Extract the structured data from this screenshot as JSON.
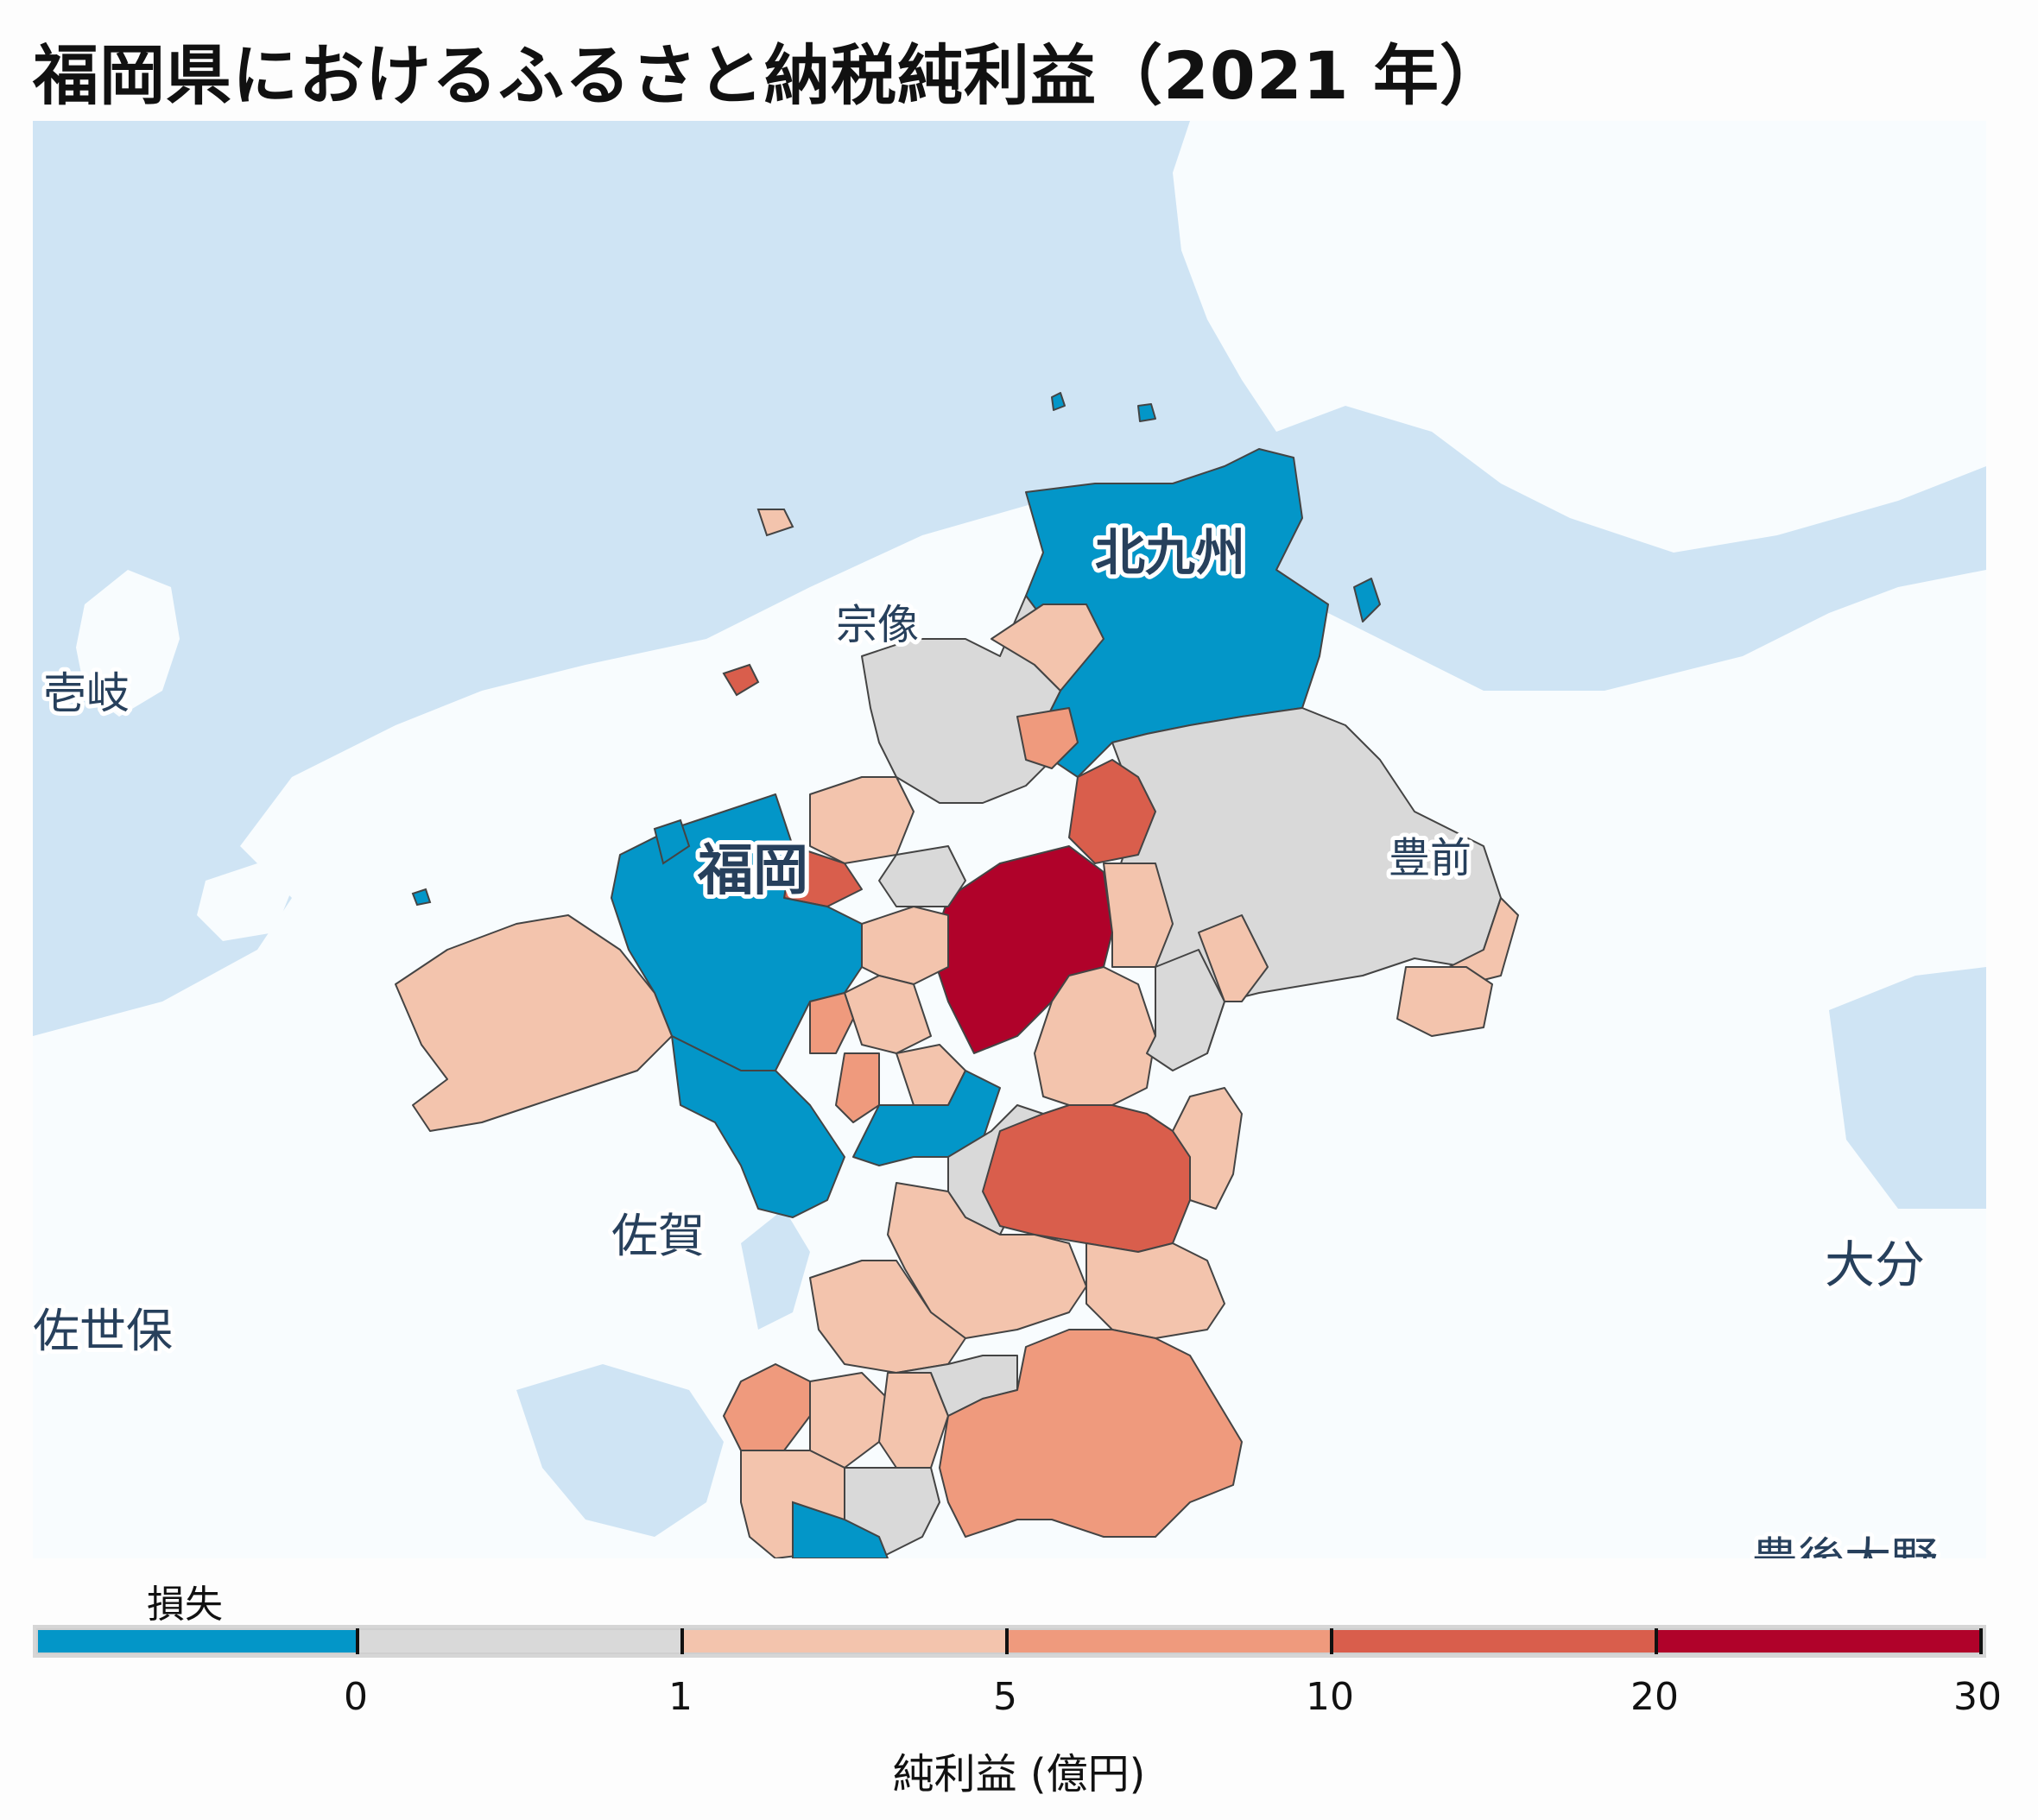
{
  "title": "福岡県におけるふるさと納税純利益（2021 年）",
  "legend": {
    "loss_label": "損失",
    "axis_label": "純利益 (億円)",
    "ticks": [
      "0",
      "1",
      "5",
      "10",
      "20",
      "30"
    ],
    "classes": [
      {
        "label": "損失",
        "color": "#0396c8"
      },
      {
        "label": "0-1",
        "color": "#d9d9d9"
      },
      {
        "label": "1-5",
        "color": "#f3c4ad"
      },
      {
        "label": "5-10",
        "color": "#ef9a7d"
      },
      {
        "label": "10-20",
        "color": "#d95e4c"
      },
      {
        "label": "20-30",
        "color": "#b0022a"
      }
    ]
  },
  "colors": {
    "sea": "#cfe4f4",
    "land": "#f8fcfe",
    "border": "#444444",
    "label_text": "#27405c"
  },
  "places": {
    "kitakyushu": "北九州",
    "munakata": "宗像",
    "iki": "壱岐",
    "fukuoka": "福岡",
    "buzen": "豊前",
    "saga": "佐賀",
    "sasebo": "佐世保",
    "oita": "大分",
    "bungo_ono": "豊後大野"
  }
}
